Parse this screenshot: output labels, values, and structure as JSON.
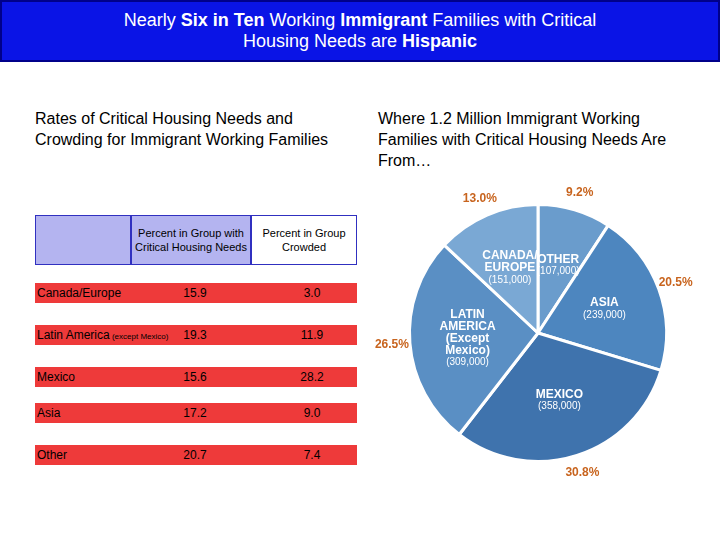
{
  "title": [
    {
      "text": "Nearly ",
      "bold": false
    },
    {
      "text": "Six in Ten",
      "bold": true
    },
    {
      "text": " Working ",
      "bold": false
    },
    {
      "text": "Immigrant",
      "bold": true
    },
    {
      "text": " Families with Critical Housing Needs are ",
      "bold": false
    },
    {
      "text": "Hispanic",
      "bold": true
    }
  ],
  "table": {
    "title": "Rates of Critical Housing Needs and Crowding for Immigrant Working Families",
    "columns": [
      "Percent in Group with Critical Housing Needs",
      "Percent in Group Crowded"
    ],
    "rows": [
      {
        "label": "Canada/Europe",
        "cells": [
          "15.9",
          "3.0"
        ]
      },
      {
        "label": "Latin America",
        "note": "(except Mexico)",
        "cells": [
          "19.3",
          "11.9"
        ]
      },
      {
        "label": "Mexico",
        "cells": [
          "15.6",
          "28.2"
        ]
      },
      {
        "label": "Asia",
        "cells": [
          "17.2",
          "9.0"
        ]
      },
      {
        "label": "Other",
        "cells": [
          "20.7",
          "7.4"
        ]
      }
    ]
  },
  "chart_data": {
    "type": "pie",
    "title": "Where 1.2 Million Immigrant Working Families with Critical Housing Needs Are From…",
    "categories": [
      "OTHER",
      "ASIA",
      "MEXICO",
      "LATIN AMERICA (Except Mexico)",
      "CANADA/EUROPE"
    ],
    "values": [
      9.2,
      20.5,
      30.8,
      26.5,
      13.0
    ],
    "value_labels": [
      "9.2%",
      "20.5%",
      "30.8%",
      "26.5%",
      "13.0%"
    ],
    "count_labels": [
      "(107,000)",
      "(239,000)",
      "(358,000)",
      "(309,000)",
      "(151,000)"
    ],
    "colors": [
      "#6a9ccc",
      "#4d86bf",
      "#3f73ad",
      "#5a8fc4",
      "#7aa8d4"
    ],
    "data_labels": true
  }
}
